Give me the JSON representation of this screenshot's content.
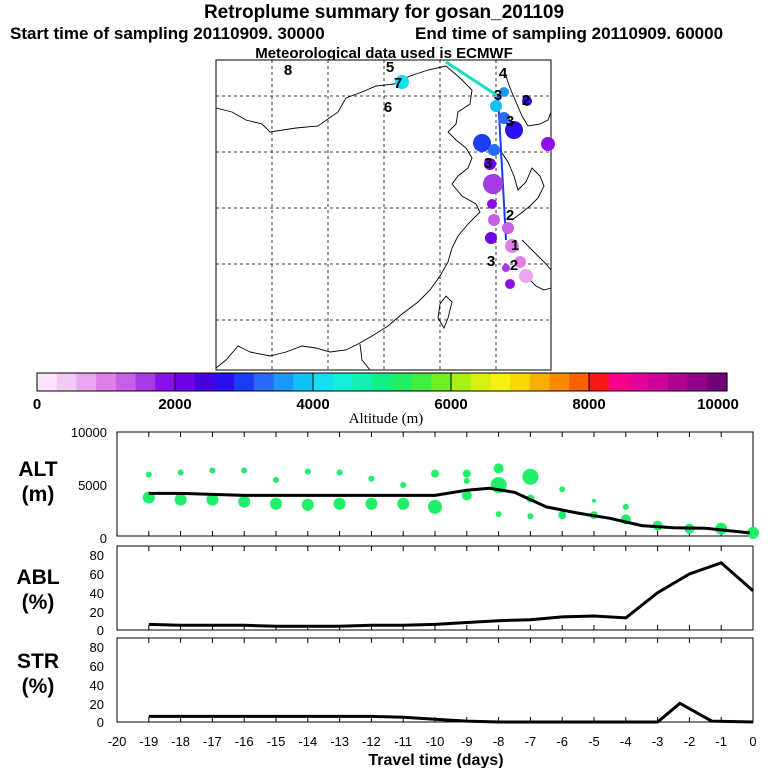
{
  "header": {
    "title": "Retroplume summary for gosan_201109",
    "start_sampling": "Start time of sampling 20110909. 30000",
    "end_sampling": "End time of sampling 20110909. 60000",
    "met_data": "Meteorological data used is ECMWF"
  },
  "colorbar": {
    "ticks": [
      "0",
      "2000",
      "4000",
      "6000",
      "8000",
      "10000"
    ],
    "label": "Altitude (m)",
    "colors": [
      "#fbe4fb",
      "#f3c9f5",
      "#eaa6f0",
      "#e07fea",
      "#c75ee6",
      "#a83ae6",
      "#8a10ea",
      "#7000e6",
      "#4800e0",
      "#2a10f0",
      "#1c3cf8",
      "#2a6af8",
      "#1c98f8",
      "#10c0f8",
      "#10e0f0",
      "#10f0d8",
      "#10f0b0",
      "#10f088",
      "#20f060",
      "#40f040",
      "#70f020",
      "#a8f010",
      "#d8f010",
      "#f8f010",
      "#f8d800",
      "#f8b000",
      "#f88800",
      "#f86000",
      "#f81818",
      "#f8008a",
      "#e8009a",
      "#d0009a",
      "#b00090",
      "#900088",
      "#700078"
    ]
  },
  "map": {
    "numbers": [
      "8",
      "7",
      "6",
      "5",
      "4",
      "3",
      "2",
      "1"
    ]
  },
  "chart_data": [
    {
      "type": "line",
      "panel": "ALT",
      "ylabel": "ALT (m)",
      "ylim": [
        0,
        10000
      ],
      "yticks": [
        "10000",
        "5000",
        "0"
      ],
      "x": [
        -19,
        -18,
        -17,
        -16,
        -15,
        -14,
        -13,
        -12,
        -11,
        -10,
        -9,
        -8.3,
        -7.5,
        -6.5,
        -5.5,
        -4.5,
        -3.5,
        -2.5,
        -1.5,
        -0.1
      ],
      "series": [
        {
          "name": "mean altitude",
          "values": [
            4100,
            4100,
            4000,
            3900,
            3900,
            3900,
            3900,
            3900,
            3900,
            3900,
            4400,
            4600,
            4200,
            2800,
            2200,
            1700,
            1000,
            800,
            750,
            300
          ]
        }
      ],
      "scatter": {
        "x": [
          -19,
          -18,
          -17,
          -16,
          -15,
          -14,
          -13,
          -12,
          -11,
          -10,
          -9,
          -8,
          -7,
          -6,
          -5,
          -4,
          -3,
          -2,
          -1,
          0,
          -19,
          -18,
          -17,
          -16,
          -15,
          -14,
          -13,
          -12,
          -11,
          -10,
          -9,
          -8,
          -7,
          -6,
          -5,
          -4,
          -9,
          -8,
          -7
        ],
        "y": [
          3700,
          3500,
          3500,
          3300,
          3100,
          3000,
          3100,
          3100,
          3100,
          2800,
          3900,
          4900,
          5700,
          2000,
          2000,
          1600,
          1000,
          700,
          700,
          300,
          5900,
          6100,
          6300,
          6300,
          5400,
          6200,
          6100,
          5500,
          4900,
          6000,
          6000,
          6500,
          3600,
          4500,
          3400,
          2800,
          5300,
          2100,
          1900
        ],
        "r": [
          6,
          6,
          6,
          6,
          6,
          6,
          6,
          6,
          6,
          7,
          5,
          8,
          8,
          4,
          4,
          5,
          5,
          5,
          6,
          6,
          3,
          3,
          3,
          3,
          3,
          3,
          3,
          3,
          3,
          4,
          4,
          5,
          4,
          3,
          2,
          3,
          3,
          3,
          3
        ]
      }
    },
    {
      "type": "line",
      "panel": "ABL",
      "ylabel": "ABL (%)",
      "ylim": [
        0,
        90
      ],
      "yticks": [
        "80",
        "60",
        "40",
        "20",
        "0"
      ],
      "x": [
        -19,
        -18,
        -17,
        -16,
        -15,
        -14,
        -13,
        -12,
        -11,
        -10,
        -9,
        -8,
        -7,
        -6,
        -5,
        -4,
        -3,
        -2,
        -1,
        0
      ],
      "series": [
        {
          "name": "ABL fraction",
          "values": [
            6,
            5,
            5,
            5,
            4,
            4,
            4,
            5,
            5,
            6,
            8,
            10,
            11,
            14,
            15,
            13,
            40,
            60,
            72,
            42
          ]
        }
      ]
    },
    {
      "type": "line",
      "panel": "STR",
      "ylabel": "STR (%)",
      "ylim": [
        0,
        90
      ],
      "yticks": [
        "80",
        "60",
        "40",
        "20",
        "0"
      ],
      "x": [
        -19,
        -18,
        -17,
        -16,
        -15,
        -14,
        -13,
        -12,
        -11,
        -10,
        -9,
        -8,
        -7,
        -6,
        -5,
        -4,
        -3,
        -2.3,
        -1.3,
        0
      ],
      "series": [
        {
          "name": "stratosphere fraction",
          "values": [
            6,
            6,
            6,
            6,
            6,
            6,
            6,
            6,
            5,
            3,
            1,
            0,
            0,
            0,
            0,
            0,
            0,
            20,
            1,
            0
          ]
        }
      ]
    }
  ],
  "xaxis": {
    "ticks": [
      "-20",
      "-19",
      "-18",
      "-17",
      "-16",
      "-15",
      "-14",
      "-13",
      "-12",
      "-11",
      "-10",
      "-9",
      "-8",
      "-7",
      "-6",
      "-5",
      "-4",
      "-3",
      "-2",
      "-1",
      "0"
    ],
    "label": "Travel time (days)"
  },
  "panel_labels": {
    "alt": [
      "ALT",
      "(m)"
    ],
    "abl": [
      "ABL",
      "(%)"
    ],
    "str": [
      "STR",
      "(%)"
    ]
  }
}
